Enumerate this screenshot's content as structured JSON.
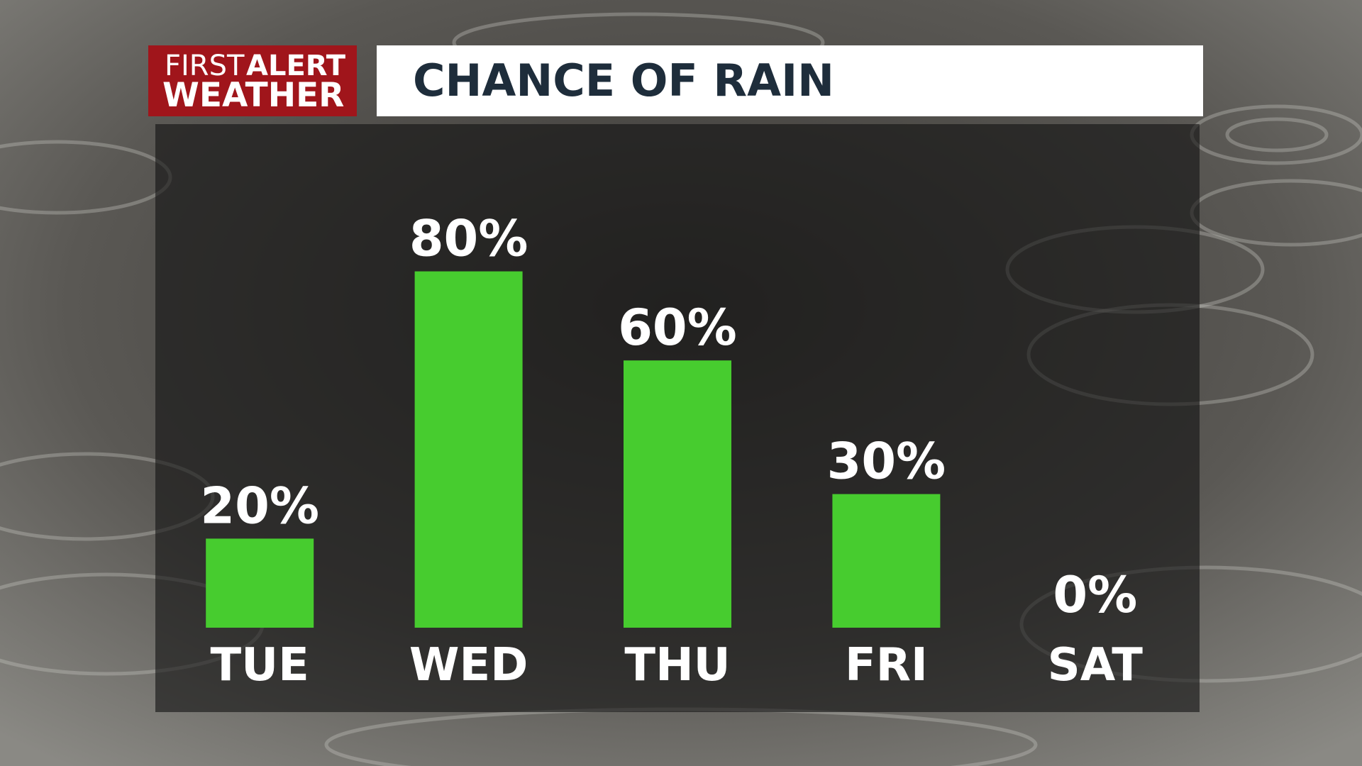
{
  "logo": [
    "FIRST",
    "ALERT",
    "WEATHER"
  ],
  "chart_data": {
    "type": "bar",
    "title": "CHANCE OF RAIN",
    "categories": [
      "TUE",
      "WED",
      "THU",
      "FRI",
      "SAT"
    ],
    "values": [
      20,
      80,
      60,
      30,
      0
    ],
    "value_labels": [
      "20%",
      "80%",
      "60%",
      "30%",
      "0%"
    ],
    "color": "#47cc2f"
  }
}
